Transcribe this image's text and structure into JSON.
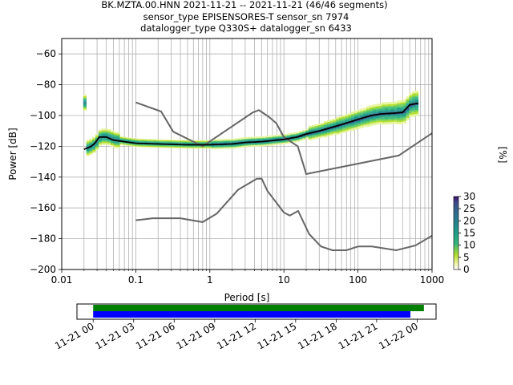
{
  "title_lines": [
    "BK.MZTA.00.HNN   2021-11-21 -- 2021-11-21  (46/46 segments)",
    "sensor_type EPISENSORES-T sensor_sn 7974",
    "datalogger_type Q330S+ datalogger_sn 6433"
  ],
  "chart_data": [
    {
      "type": "heatmap",
      "title": "BK.MZTA.00.HNN   2021-11-21 -- 2021-11-21  (46/46 segments)",
      "xlabel": "Period [s]",
      "ylabel": "Power [dB]",
      "xscale": "log",
      "xlim": [
        0.01,
        1000
      ],
      "ylim": [
        -200,
        -50
      ],
      "x_ticks": [
        0.01,
        0.1,
        1,
        10,
        100,
        1000
      ],
      "x_tick_labels": [
        "0.01",
        "0.1",
        "1",
        "10",
        "100",
        "1000"
      ],
      "y_ticks": [
        -200,
        -180,
        -160,
        -140,
        -120,
        -100,
        -80,
        -60
      ],
      "y_tick_labels": [
        "−200",
        "−180",
        "−160",
        "−140",
        "−120",
        "−100",
        "−80",
        "−60"
      ],
      "grid": true,
      "mean_curve": {
        "color": "#000000",
        "points": [
          [
            0.02,
            -122
          ],
          [
            0.025,
            -120
          ],
          [
            0.028,
            -118
          ],
          [
            0.032,
            -114
          ],
          [
            0.04,
            -114
          ],
          [
            0.05,
            -116
          ],
          [
            0.07,
            -117
          ],
          [
            0.1,
            -118
          ],
          [
            0.2,
            -118.5
          ],
          [
            0.5,
            -119
          ],
          [
            1,
            -119
          ],
          [
            2,
            -118.5
          ],
          [
            3,
            -117.5
          ],
          [
            5,
            -117
          ],
          [
            10,
            -115.5
          ],
          [
            15,
            -114
          ],
          [
            20,
            -112
          ],
          [
            30,
            -110
          ],
          [
            50,
            -107
          ],
          [
            80,
            -104
          ],
          [
            100,
            -102.5
          ],
          [
            150,
            -100
          ],
          [
            200,
            -99
          ],
          [
            300,
            -98.5
          ],
          [
            400,
            -98
          ],
          [
            500,
            -93
          ],
          [
            650,
            -92
          ]
        ]
      },
      "noise_model_high": {
        "color": "#666666",
        "points": [
          [
            0.1,
            -91.5
          ],
          [
            0.22,
            -97.4
          ],
          [
            0.32,
            -110.5
          ],
          [
            0.8,
            -120
          ],
          [
            3.8,
            -98
          ],
          [
            4.6,
            -96.5
          ],
          [
            6.3,
            -101
          ],
          [
            7.9,
            -105
          ],
          [
            10,
            -114
          ],
          [
            15.4,
            -120
          ],
          [
            20,
            -138
          ],
          [
            354.8,
            -126
          ],
          [
            1000,
            -111.5
          ]
        ]
      },
      "noise_model_low": {
        "color": "#666666",
        "points": [
          [
            0.1,
            -168
          ],
          [
            0.17,
            -166.7
          ],
          [
            0.4,
            -166.7
          ],
          [
            0.8,
            -169.2
          ],
          [
            1.24,
            -163.7
          ],
          [
            2.4,
            -148.3
          ],
          [
            4.3,
            -141.1
          ],
          [
            5,
            -141
          ],
          [
            6,
            -149
          ],
          [
            10,
            -163
          ],
          [
            12,
            -165
          ],
          [
            15.6,
            -162
          ],
          [
            21.9,
            -177
          ],
          [
            31.6,
            -185
          ],
          [
            45,
            -187.5
          ],
          [
            70,
            -187.5
          ],
          [
            101,
            -185
          ],
          [
            154,
            -185
          ],
          [
            328,
            -187.5
          ],
          [
            600,
            -184.4
          ],
          [
            1000,
            -178
          ]
        ]
      },
      "colorbar": {
        "label": "[%]",
        "range": [
          0,
          30
        ],
        "ticks": [
          0,
          5,
          10,
          15,
          20,
          25,
          30
        ],
        "colormap": "viridis_r-like (white-yellow-green-teal-navy-purple)"
      }
    },
    {
      "type": "bar",
      "title": "",
      "description": "data coverage timeline",
      "x_tick_labels": [
        "11-21 00",
        "11-21 03",
        "11-21 06",
        "11-21 09",
        "11-21 12",
        "11-21 15",
        "11-21 18",
        "11-21 21",
        "11-22 00"
      ],
      "x_ticks_hours": [
        0,
        3,
        6,
        9,
        12,
        15,
        18,
        21,
        24
      ],
      "xlim_hours": [
        -1.2,
        25.4
      ],
      "series": [
        {
          "color": "#008000",
          "start_hour": 0,
          "end_hour": 24.5
        },
        {
          "color": "#0000ff",
          "start_hour": 0,
          "end_hour": 23.5
        }
      ]
    }
  ]
}
